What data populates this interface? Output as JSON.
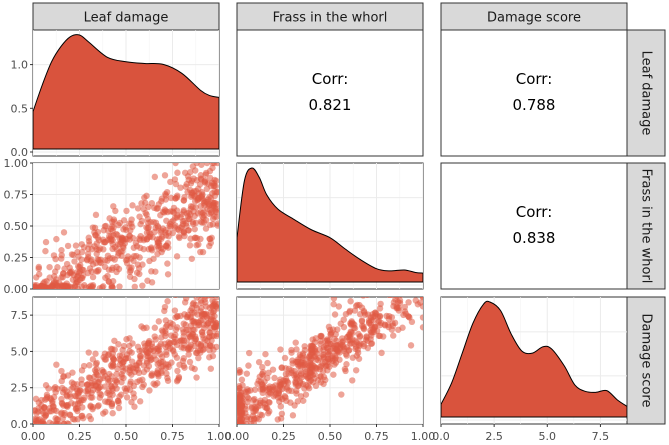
{
  "colors": {
    "fill": "#d9533d",
    "point": "#e05a44",
    "strip": "#d9d9d9"
  },
  "variables": [
    "Leaf damage",
    "Frass in the whorl",
    "Damage score"
  ],
  "chart_data": {
    "type": "scatter",
    "layout": "pairs-matrix",
    "variables": [
      "Leaf damage",
      "Frass in the whorl",
      "Damage score"
    ],
    "ranges": [
      [
        0,
        1
      ],
      [
        0,
        1
      ],
      [
        0,
        8.75
      ]
    ],
    "ticks": {
      "Leaf damage": [
        0.0,
        0.25,
        0.5,
        0.75,
        1.0
      ],
      "Frass in the whorl": [
        0.0,
        0.25,
        0.5,
        0.75,
        1.0
      ],
      "Damage score": [
        0.0,
        2.5,
        5.0,
        7.5
      ]
    },
    "tick_labels": {
      "Leaf damage": [
        "0.00",
        "0.25",
        "0.50",
        "0.75",
        "1.00"
      ],
      "Frass in the whorl": [
        "0.00",
        "0.25",
        "0.50",
        "0.75",
        "1.00"
      ],
      "Damage score": [
        "0.0",
        "2.5",
        "5.0",
        "7.5"
      ]
    },
    "density_axis": {
      "ticks": [
        0.0,
        0.5,
        1.0
      ],
      "tick_labels": [
        "0.0",
        "0.5",
        "1.0"
      ],
      "ylim": [
        0,
        1.35
      ]
    },
    "densities": [
      {
        "variable": "Leaf damage",
        "x": [
          0.0,
          0.05,
          0.1,
          0.15,
          0.2,
          0.25,
          0.3,
          0.4,
          0.5,
          0.6,
          0.7,
          0.8,
          0.9,
          0.95,
          1.0
        ],
        "y": [
          0.42,
          0.72,
          0.98,
          1.15,
          1.26,
          1.28,
          1.2,
          1.03,
          0.98,
          0.96,
          0.95,
          0.85,
          0.66,
          0.6,
          0.58
        ]
      },
      {
        "variable": "Frass in the whorl",
        "x": [
          0.0,
          0.04,
          0.08,
          0.12,
          0.16,
          0.22,
          0.3,
          0.4,
          0.5,
          0.58,
          0.66,
          0.75,
          0.82,
          0.9,
          0.96,
          1.0
        ],
        "y": [
          1.4,
          3.2,
          3.6,
          3.3,
          2.75,
          2.3,
          2.0,
          1.65,
          1.4,
          1.05,
          0.72,
          0.42,
          0.35,
          0.38,
          0.3,
          0.28
        ]
      },
      {
        "variable": "Damage score",
        "x": [
          0.0,
          0.5,
          1.0,
          1.5,
          2.0,
          2.3,
          2.8,
          3.3,
          3.8,
          4.3,
          4.8,
          5.2,
          5.8,
          6.3,
          6.8,
          7.3,
          7.8,
          8.3,
          8.75
        ],
        "y": [
          0.03,
          0.08,
          0.15,
          0.22,
          0.265,
          0.27,
          0.25,
          0.195,
          0.155,
          0.15,
          0.165,
          0.16,
          0.12,
          0.075,
          0.06,
          0.058,
          0.062,
          0.04,
          0.025
        ]
      }
    ],
    "correlations": [
      {
        "label": "Corr:",
        "value": "0.821",
        "row": "Leaf damage",
        "col": "Frass in the whorl"
      },
      {
        "label": "Corr:",
        "value": "0.788",
        "row": "Leaf damage",
        "col": "Damage score"
      },
      {
        "label": "Corr:",
        "value": "0.838",
        "row": "Frass in the whorl",
        "col": "Damage score"
      }
    ],
    "scatter": [
      {
        "x_var": "Leaf damage",
        "y_var": "Frass in the whorl",
        "n": 600,
        "r": 0.821
      },
      {
        "x_var": "Leaf damage",
        "y_var": "Damage score",
        "n": 600,
        "r": 0.788
      },
      {
        "x_var": "Frass in the whorl",
        "y_var": "Damage score",
        "n": 600,
        "r": 0.838
      }
    ],
    "grid": true
  }
}
